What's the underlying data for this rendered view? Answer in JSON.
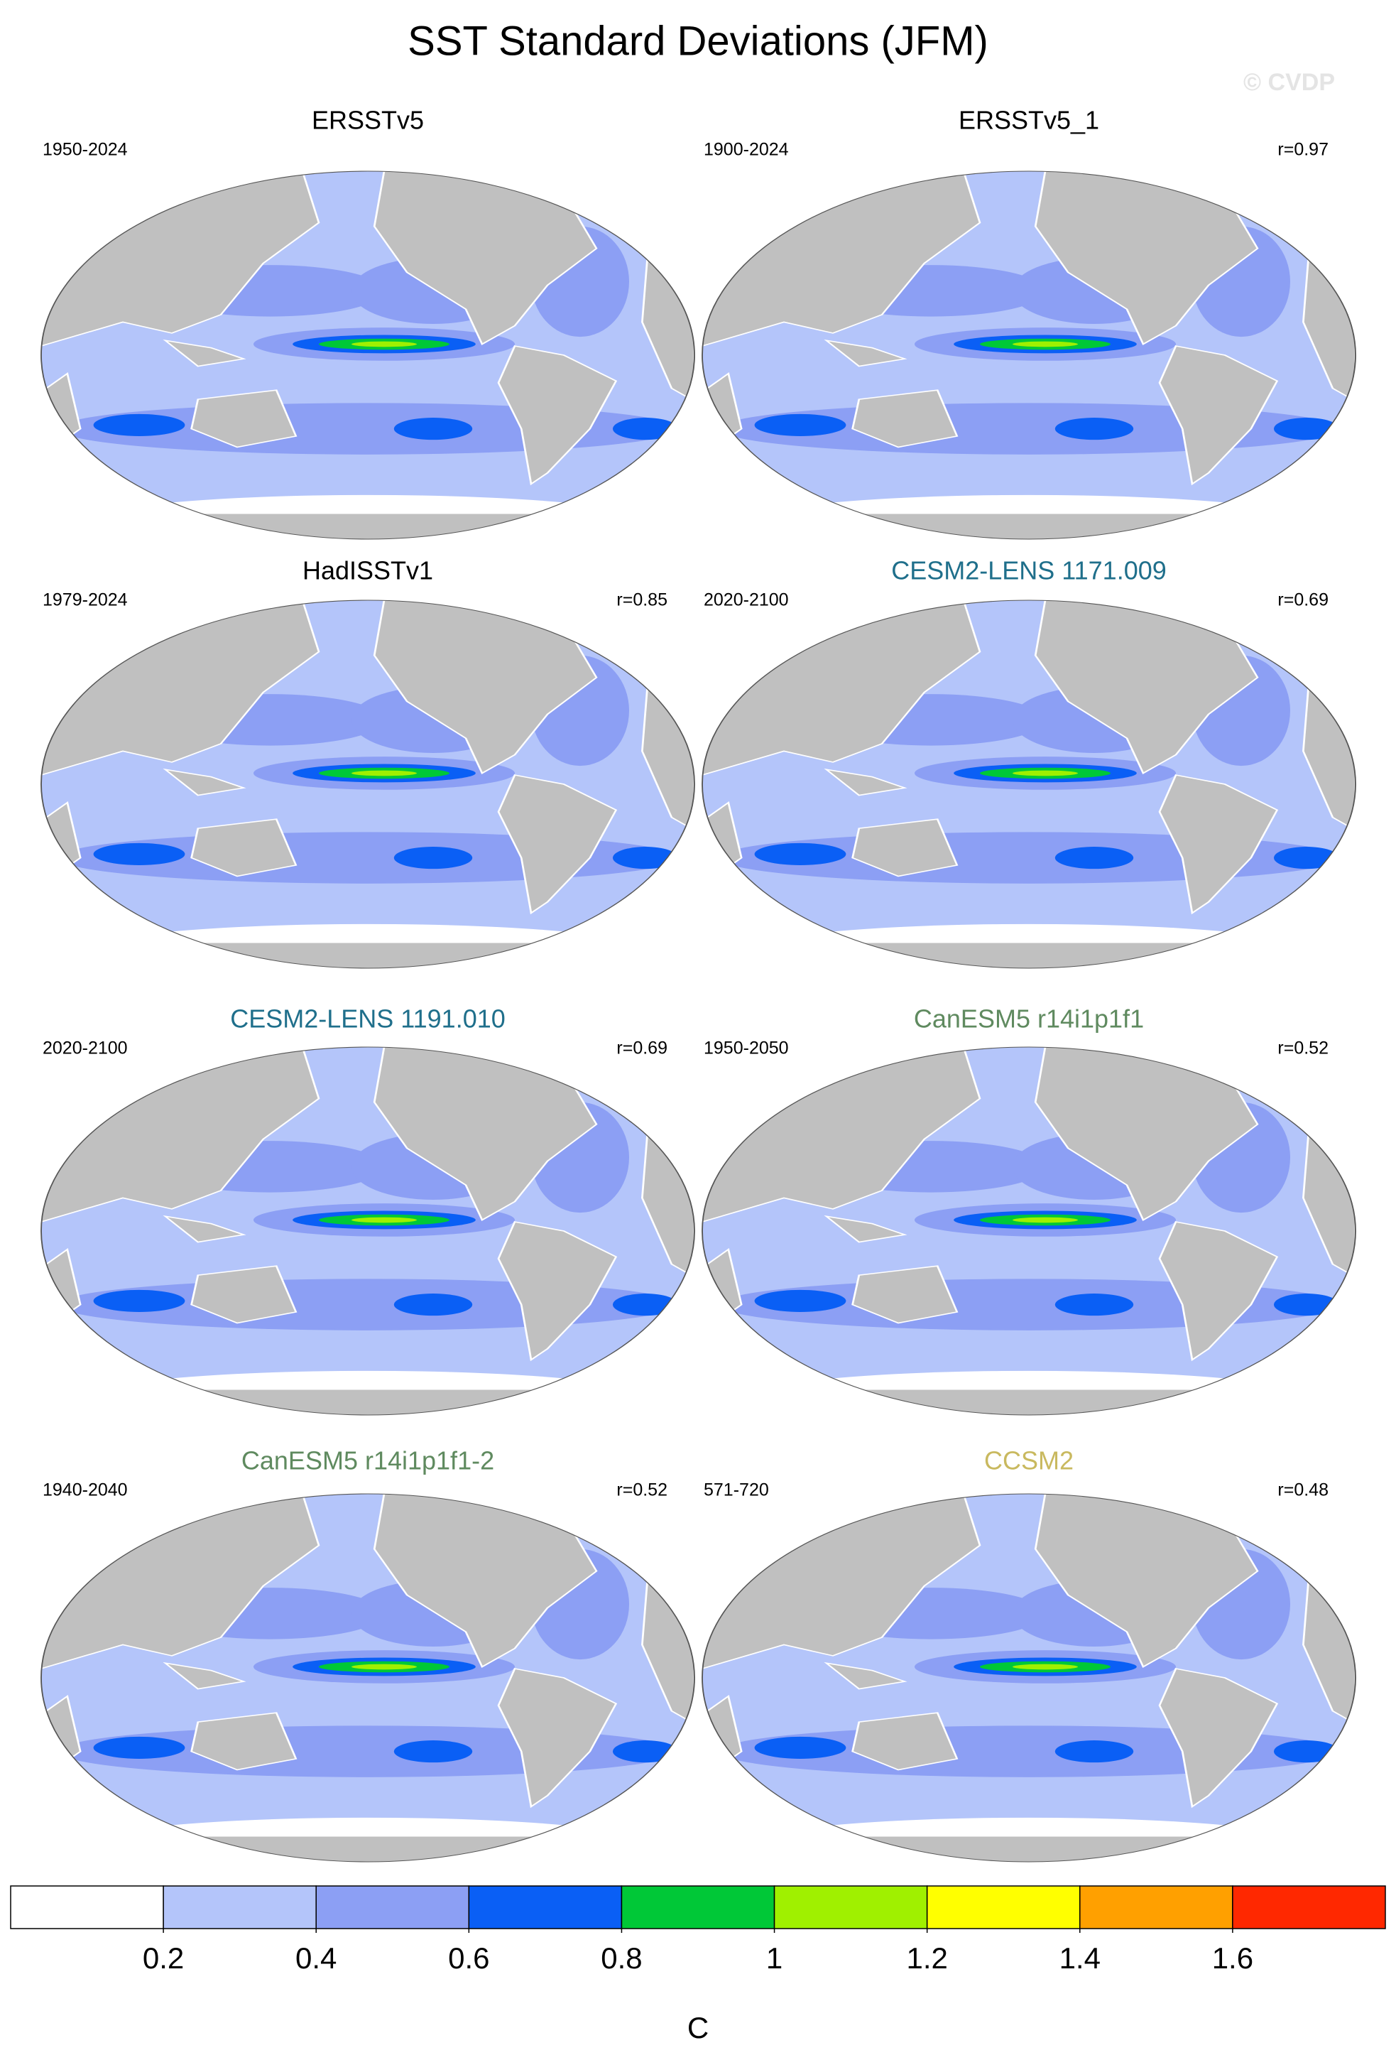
{
  "title": "SST Standard Deviations (JFM)",
  "watermark": "© CVDP",
  "panels": [
    {
      "title": "ERSSTv5",
      "title_color": "#000000",
      "period": "1950-2024",
      "r": null
    },
    {
      "title": "ERSSTv5_1",
      "title_color": "#000000",
      "period": "1900-2024",
      "r": "r=0.97"
    },
    {
      "title": "HadISSTv1",
      "title_color": "#000000",
      "period": "1979-2024",
      "r": "r=0.85"
    },
    {
      "title": "CESM2-LENS 1171.009",
      "title_color": "#1f6f8b",
      "period": "2020-2100",
      "r": "r=0.69"
    },
    {
      "title": "CESM2-LENS 1191.010",
      "title_color": "#1f6f8b",
      "period": "2020-2100",
      "r": "r=0.69"
    },
    {
      "title": "CanESM5 r14i1p1f1",
      "title_color": "#5f8a5f",
      "period": "1950-2050",
      "r": "r=0.52"
    },
    {
      "title": "CanESM5 r14i1p1f1-2",
      "title_color": "#5f8a5f",
      "period": "1940-2040",
      "r": "r=0.52"
    },
    {
      "title": "CCSM2",
      "title_color": "#c9b95f",
      "period": "571-720",
      "r": "r=0.48"
    }
  ],
  "colorbar": {
    "colors": [
      "#ffffff",
      "#b4c5fa",
      "#8c9ff4",
      "#0a5ff5",
      "#00c837",
      "#a0f000",
      "#ffff00",
      "#ffa000",
      "#ff2800"
    ],
    "ticks": [
      0.2,
      0.4,
      0.6,
      0.8,
      1,
      1.2,
      1.4,
      1.6
    ],
    "label": "C"
  }
}
